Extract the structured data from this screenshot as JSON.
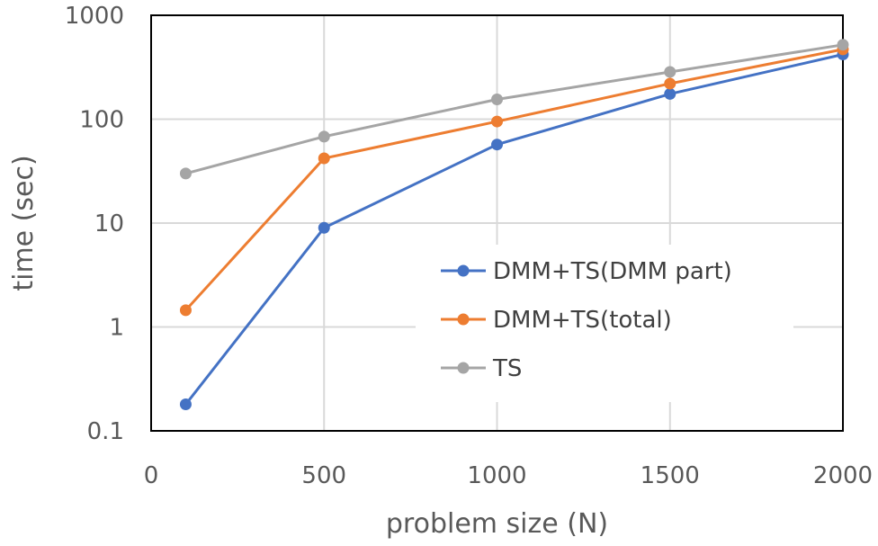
{
  "chart_data": {
    "type": "line",
    "title": "",
    "xlabel": "problem size (N)",
    "ylabel": "time (sec)",
    "x": [
      100,
      500,
      1000,
      1500,
      2000
    ],
    "xlim": [
      0,
      2000
    ],
    "x_ticks": [
      "0",
      "500",
      "1000",
      "1500",
      "2000"
    ],
    "y_scale": "log",
    "ylim": [
      0.1,
      1000
    ],
    "y_ticks": [
      "0.1",
      "1",
      "10",
      "100",
      "1000"
    ],
    "grid": true,
    "legend_position": "inside-right",
    "series": [
      {
        "name": "DMM+TS(DMM part)",
        "color": "#4472C4",
        "values": [
          0.18,
          9,
          57,
          175,
          420
        ]
      },
      {
        "name": "DMM+TS(total)",
        "color": "#ED7D31",
        "values": [
          1.45,
          42,
          95,
          220,
          470
        ]
      },
      {
        "name": "TS",
        "color": "#A5A5A5",
        "values": [
          30,
          68,
          155,
          285,
          520
        ]
      }
    ]
  }
}
